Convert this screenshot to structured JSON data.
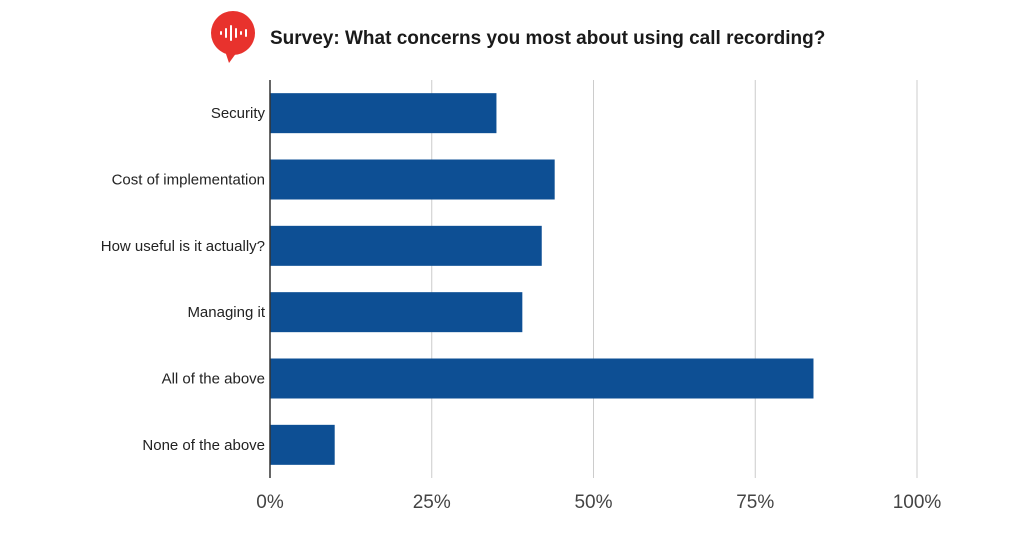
{
  "header": {
    "title": "Survey: What concerns you most about using call recording?",
    "logo_icon": "sound-wave-speech-bubble-icon",
    "logo_color": "#e8322d"
  },
  "chart_data": {
    "type": "bar",
    "orientation": "horizontal",
    "title": "Survey: What concerns you most about using call recording?",
    "xlabel": "",
    "ylabel": "",
    "categories": [
      "Security",
      "Cost of implementation",
      "How useful is it actually?",
      "Managing it",
      "All of the above",
      "None of the above"
    ],
    "values": [
      35,
      44,
      42,
      39,
      84,
      10
    ],
    "value_unit": "%",
    "xlim": [
      0,
      100
    ],
    "ticks": [
      0,
      25,
      50,
      75,
      100
    ],
    "tick_labels": [
      "0%",
      "25%",
      "50%",
      "75%",
      "100%"
    ],
    "grid": "vertical",
    "legend": "none",
    "bar_color": "#0d4f94",
    "grid_color": "#cccccc",
    "axis_color": "#333333"
  }
}
